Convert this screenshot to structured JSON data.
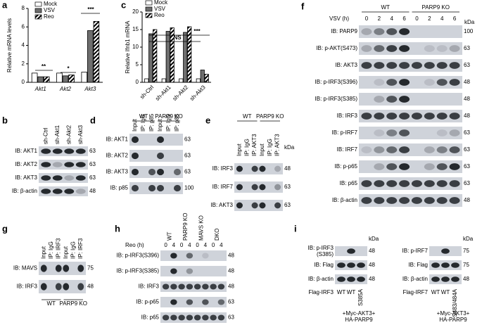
{
  "chart_data": [
    {
      "type": "bar",
      "panel": "a",
      "y_label": "Relative mRNA levels",
      "categories": [
        "Akt1",
        "Akt2",
        "Akt3"
      ],
      "series": [
        {
          "name": "Mock",
          "color": "#ffffff",
          "values": [
            1.0,
            1.0,
            1.1
          ]
        },
        {
          "name": "VSV",
          "color": "#6e6e6e",
          "values": [
            0.6,
            0.7,
            5.6
          ]
        },
        {
          "name": "Reo",
          "color": "#000000",
          "hatch": true,
          "values": [
            0.6,
            0.8,
            6.6
          ]
        }
      ],
      "ylim": [
        0,
        8
      ],
      "yticks": [
        0,
        2,
        4,
        6,
        8
      ],
      "legend": "top-left",
      "annotations": [
        "**",
        "*",
        "***"
      ]
    },
    {
      "type": "bar",
      "panel": "c",
      "y_label": "Relative Ifnb1 mRNA",
      "categories": [
        "sh-Ctrl",
        "sh-Akt1",
        "sh-Akt2",
        "sh-Akt3"
      ],
      "series": [
        {
          "name": "Mock",
          "color": "#ffffff",
          "values": [
            1.0,
            1.0,
            1.0,
            1.0
          ]
        },
        {
          "name": "VSV",
          "color": "#6e6e6e",
          "values": [
            13.8,
            14.5,
            14.2,
            3.5
          ]
        },
        {
          "name": "Reo",
          "color": "#000000",
          "hatch": true,
          "values": [
            15.0,
            15.5,
            15.8,
            2.3
          ]
        }
      ],
      "ylim": [
        0,
        20
      ],
      "yticks": [
        0,
        5,
        10,
        15,
        20
      ],
      "legend": "top-left",
      "annotations": [
        "NS",
        "***"
      ]
    }
  ],
  "blots": [
    {
      "panel": "b",
      "lanes": [
        "sh-Ctrl",
        "sh-Akt1",
        "sh-Akt2",
        "sh-Akt3"
      ],
      "rows": [
        {
          "label": "IB: AKT1",
          "kda": 63
        },
        {
          "label": "IB: AKT2",
          "kda": 63
        },
        {
          "label": "IB: AKT3",
          "kda": 63
        },
        {
          "label": "IB: β-actin",
          "kda": 48
        }
      ]
    },
    {
      "panel": "d",
      "groups": [
        "WT",
        "PARP9 KO"
      ],
      "lanes": [
        "Input",
        "IP: IgG",
        "IP: p85",
        "Input",
        "IP: IgG",
        "IP: p85"
      ],
      "rows": [
        {
          "label": "IB: AKT1",
          "kda": 63
        },
        {
          "label": "IB: AKT2",
          "kda": 63
        },
        {
          "label": "IB: AKT3",
          "kda": 63
        },
        {
          "label": "IB: p85",
          "kda": 100
        }
      ]
    },
    {
      "panel": "e",
      "groups": [
        "WT",
        "PARP9 KO"
      ],
      "kda_header": "kDa",
      "lanes": [
        "Input",
        "IP: IgG",
        "IP: AKT3",
        "Input",
        "IP: IgG",
        "IP: AKT3"
      ],
      "rows": [
        {
          "label": "IB: IRF3",
          "kda": 48
        },
        {
          "label": "IB: IRF7",
          "kda": 63
        },
        {
          "label": "IB: AKT3",
          "kda": 63
        }
      ]
    },
    {
      "panel": "f",
      "groups": [
        "WT",
        "PARP9 KO"
      ],
      "time_label": "VSV (h)",
      "kda_header": "kDa",
      "lanes": [
        "0",
        "2",
        "4",
        "6",
        "0",
        "2",
        "4",
        "6"
      ],
      "rows": [
        {
          "label": "IB: PARP9",
          "kda": 100
        },
        {
          "label": "IB: p-AKT(S473)",
          "kda": 63
        },
        {
          "label": "IB: AKT3",
          "kda": 63
        },
        {
          "label": "IB: p-IRF3(S396)",
          "kda": 48
        },
        {
          "label": "IB: p-IRF3(S385)",
          "kda": 48
        },
        {
          "label": "IB: IRF3",
          "kda": 48
        },
        {
          "label": "IB: p-IRF7",
          "kda": 63
        },
        {
          "label": "IB: IRF7",
          "kda": 63
        },
        {
          "label": "IB: p-p65",
          "kda": 63
        },
        {
          "label": "IB: p65",
          "kda": 63
        },
        {
          "label": "IB: β-actin",
          "kda": 48
        }
      ]
    },
    {
      "panel": "g",
      "groups": [
        "WT",
        "PARP9 KO"
      ],
      "lanes": [
        "Input",
        "IP: IgG",
        "IP: IRF3",
        "Input",
        "IP: IgG",
        "IP: IRF3"
      ],
      "rows": [
        {
          "label": "IB: MAVS",
          "kda": 75
        },
        {
          "label": "IB: IRF3",
          "kda": 48
        }
      ]
    },
    {
      "panel": "h",
      "groups": [
        "WT",
        "PARP9 KO",
        "MAVS KO",
        "DKO"
      ],
      "time_label": "Reo (h)",
      "lanes": [
        "0",
        "4",
        "0",
        "4",
        "0",
        "4",
        "0",
        "4"
      ],
      "rows": [
        {
          "label": "IB: p-IRF3(S396)",
          "kda": 48
        },
        {
          "label": "IB: p-IRF3(S385)",
          "kda": 48
        },
        {
          "label": "IB: IRF3",
          "kda": 48
        },
        {
          "label": "IB: p-p65",
          "kda": 63
        },
        {
          "label": "IB: p65",
          "kda": 63
        }
      ]
    },
    {
      "panel": "i",
      "kda_header": "kDa",
      "condition": "Flag-IRF3",
      "lanes": [
        "WT",
        "WT",
        "S385A"
      ],
      "note": [
        "+Myc-AKT3+",
        "HA-PARP9"
      ],
      "rows": [
        {
          "label": "IB: p-IRF3",
          "label_note": "(S385)",
          "kda": 48
        },
        {
          "label": "IB: Flag",
          "kda": 48
        },
        {
          "label": "IB: β-actin",
          "kda": 48
        }
      ]
    },
    {
      "kda_header": "kDa",
      "condition": "Flag-IRF7",
      "lanes": [
        "WT",
        "WT",
        "S483/484A"
      ],
      "note": [
        "+Myc-AKT3+",
        "HA-PARP9"
      ],
      "rows": [
        {
          "label": "IB: p-IRF7",
          "kda": 75
        },
        {
          "label": "IB: Flag",
          "kda": 75
        },
        {
          "label": "IB: β-actin",
          "kda": 48
        }
      ]
    }
  ]
}
